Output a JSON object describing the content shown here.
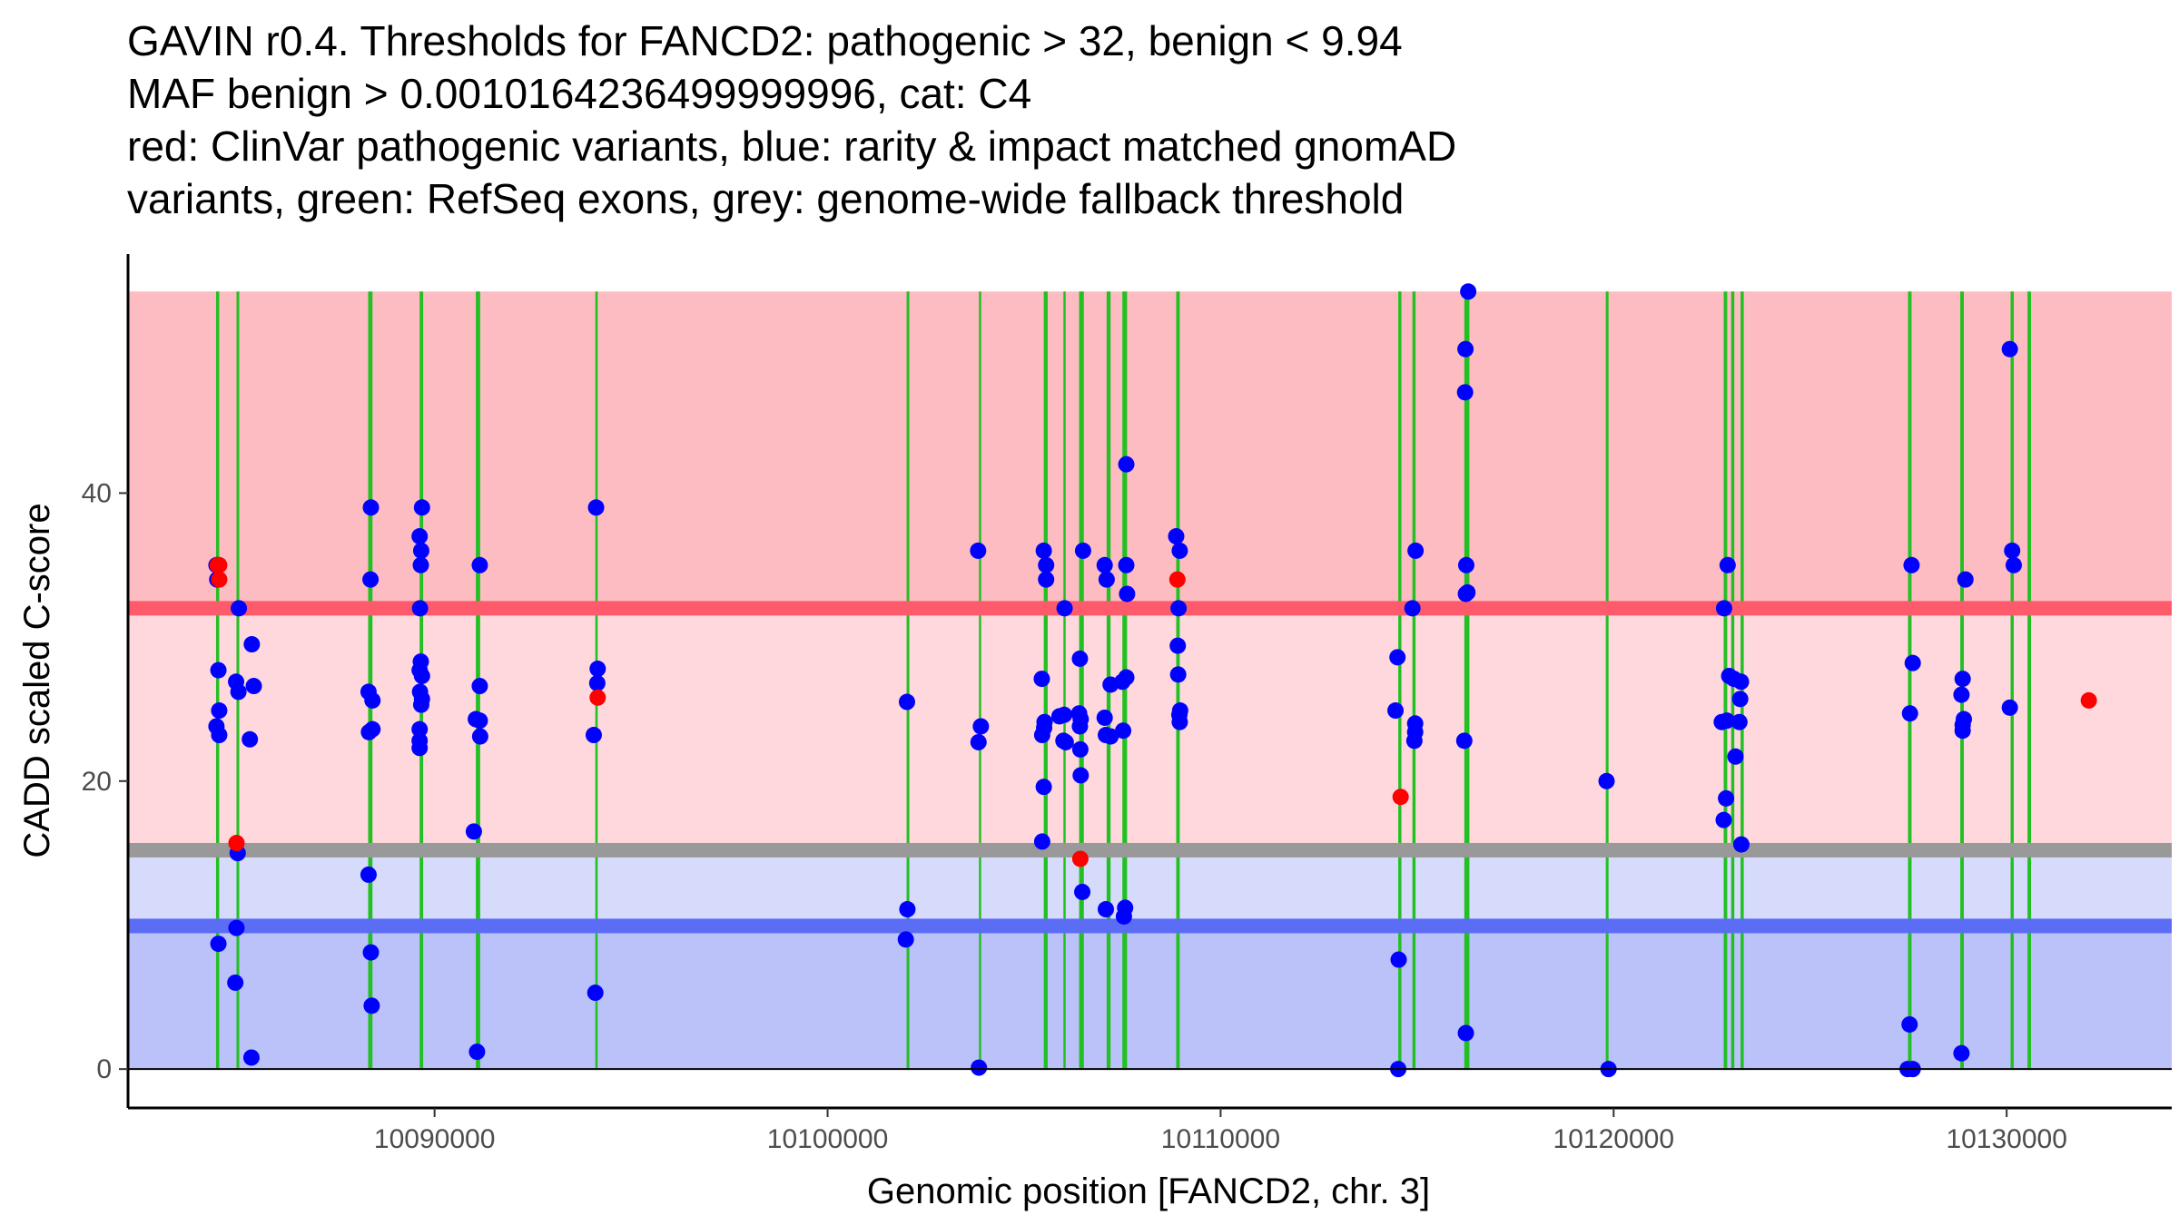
{
  "title_lines": [
    "GAVIN r0.4. Thresholds for FANCD2: pathogenic > 32, benign < 9.94",
    "MAF benign > 0.0010164236499999996, cat: C4",
    "red: ClinVar pathogenic variants, blue: rarity & impact matched gnomAD",
    "variants, green: RefSeq exons, grey: genome-wide fallback threshold"
  ],
  "chart_data": {
    "type": "scatter",
    "title": "GAVIN r0.4. Thresholds for FANCD2: pathogenic > 32, benign < 9.94 MAF benign > 0.0010164236499999996, cat: C4 red: ClinVar pathogenic variants, blue: rarity & impact matched gnomAD variants, green: RefSeq exons, grey: genome-wide fallback threshold",
    "xlabel": "Genomic position [FANCD2, chr. 3]",
    "ylabel": "CADD scaled C-score",
    "xlim": [
      10082200,
      10134200
    ],
    "ylim": [
      -2.7,
      56.6
    ],
    "x_ticks": [
      10090000,
      10100000,
      10110000,
      10120000,
      10130000
    ],
    "y_ticks": [
      0,
      20,
      40
    ],
    "x_tick_labels": [
      "10090000",
      "10100000",
      "10110000",
      "10120000",
      "10130000"
    ],
    "y_tick_labels": [
      "0",
      "20",
      "40"
    ],
    "colors": {
      "pathogenic_region": "#fdbcc2",
      "middle_pathogenic_region": "#fed8dd",
      "middle_benign_region": "#d6dbfc",
      "benign_region": "#bbc2fa",
      "pathogenic_threshold": "#fd5b6b",
      "benign_threshold": "#5b6cf5",
      "fallback_threshold": "#999999",
      "exon": "#22c022",
      "pathogenic_point": "#ff0000",
      "gnomad_point": "#0000ff"
    },
    "bands": [
      {
        "name": "pathogenic",
        "from": 32,
        "to": 54
      },
      {
        "name": "middle-high",
        "from": 15.2,
        "to": 32
      },
      {
        "name": "middle-low",
        "from": 9.94,
        "to": 15.2
      },
      {
        "name": "benign",
        "from": 0,
        "to": 9.94
      }
    ],
    "thresholds": {
      "pathogenic": 32,
      "benign": 9.94,
      "fallback": 15.2
    },
    "exons": [
      [
        10084440,
        10084520
      ],
      [
        10084960,
        10085030
      ],
      [
        10088310,
        10088420
      ],
      [
        10089620,
        10089710
      ],
      [
        10091050,
        10091160
      ],
      [
        10094090,
        10094150
      ],
      [
        10102010,
        10102080
      ],
      [
        10103850,
        10103880
      ],
      [
        10105500,
        10105600
      ],
      [
        10106000,
        10106030
      ],
      [
        10106400,
        10106520
      ],
      [
        10107100,
        10107200
      ],
      [
        10107500,
        10107620
      ],
      [
        10108870,
        10108960
      ],
      [
        10114520,
        10114600
      ],
      [
        10114880,
        10114960
      ],
      [
        10116200,
        10116330
      ],
      [
        10119800,
        10119870
      ],
      [
        10122800,
        10122890
      ],
      [
        10122990,
        10123070
      ],
      [
        10123230,
        10123310
      ],
      [
        10127490,
        10127580
      ],
      [
        10128820,
        10128910
      ],
      [
        10130100,
        10130180
      ],
      [
        10130530,
        10130620
      ]
    ],
    "series": [
      {
        "name": "ClinVar pathogenic variants",
        "color": "#ff0000",
        "points": [
          [
            10084480,
            35
          ],
          [
            10084520,
            34
          ],
          [
            10084520,
            35
          ],
          [
            10084960,
            15.7
          ],
          [
            10094150,
            25.8
          ],
          [
            10106430,
            14.6
          ],
          [
            10108900,
            34
          ],
          [
            10114580,
            18.9
          ],
          [
            10132090,
            25.6
          ]
        ]
      },
      {
        "name": "rarity & impact matched gnomAD variants",
        "color": "#0000ff",
        "points": [
          [
            10084450,
            35
          ],
          [
            10084470,
            34
          ],
          [
            10084500,
            27.7
          ],
          [
            10084520,
            24.9
          ],
          [
            10084450,
            23.8
          ],
          [
            10084520,
            23.2
          ],
          [
            10084500,
            8.7
          ],
          [
            10085020,
            32
          ],
          [
            10084950,
            26.9
          ],
          [
            10085010,
            26.2
          ],
          [
            10085350,
            29.5
          ],
          [
            10085400,
            26.6
          ],
          [
            10085300,
            22.9
          ],
          [
            10084990,
            15
          ],
          [
            10084960,
            9.8
          ],
          [
            10084930,
            6
          ],
          [
            10085340,
            0.8
          ],
          [
            10088380,
            39
          ],
          [
            10088370,
            34
          ],
          [
            10088320,
            26.2
          ],
          [
            10088420,
            25.6
          ],
          [
            10088330,
            23.4
          ],
          [
            10088420,
            23.6
          ],
          [
            10088320,
            13.5
          ],
          [
            10088380,
            8.1
          ],
          [
            10088400,
            4.4
          ],
          [
            10089620,
            37
          ],
          [
            10089680,
            39
          ],
          [
            10089660,
            36
          ],
          [
            10089650,
            35
          ],
          [
            10089630,
            32
          ],
          [
            10089650,
            28.3
          ],
          [
            10089620,
            27.7
          ],
          [
            10089680,
            27.3
          ],
          [
            10089630,
            26.2
          ],
          [
            10089680,
            25.7
          ],
          [
            10089620,
            23.6
          ],
          [
            10089620,
            22.8
          ],
          [
            10089620,
            22.3
          ],
          [
            10089660,
            25.3
          ],
          [
            10091150,
            35
          ],
          [
            10091050,
            24.3
          ],
          [
            10091150,
            24.2
          ],
          [
            10091150,
            26.6
          ],
          [
            10091160,
            23.1
          ],
          [
            10091000,
            16.5
          ],
          [
            10091080,
            1.2
          ],
          [
            10094110,
            39
          ],
          [
            10094150,
            27.8
          ],
          [
            10094140,
            26.8
          ],
          [
            10094050,
            23.2
          ],
          [
            10094090,
            5.3
          ],
          [
            10102020,
            25.5
          ],
          [
            10102030,
            11.1
          ],
          [
            10101990,
            9
          ],
          [
            10103830,
            36
          ],
          [
            10103900,
            23.8
          ],
          [
            10103840,
            22.7
          ],
          [
            10103850,
            0.1
          ],
          [
            10105500,
            36
          ],
          [
            10105560,
            35
          ],
          [
            10105560,
            34
          ],
          [
            10105450,
            27.1
          ],
          [
            10105460,
            23.2
          ],
          [
            10105520,
            24.1
          ],
          [
            10105510,
            23.7
          ],
          [
            10105500,
            19.6
          ],
          [
            10105460,
            15.8
          ],
          [
            10106030,
            32
          ],
          [
            10105900,
            24.5
          ],
          [
            10106020,
            24.6
          ],
          [
            10106000,
            22.8
          ],
          [
            10106060,
            22.7
          ],
          [
            10106400,
            24.7
          ],
          [
            10106440,
            24.3
          ],
          [
            10106420,
            23.8
          ],
          [
            10106430,
            22.2
          ],
          [
            10106440,
            20.4
          ],
          [
            10106500,
            36
          ],
          [
            10106420,
            28.5
          ],
          [
            10106480,
            12.3
          ],
          [
            10107050,
            35
          ],
          [
            10107100,
            34
          ],
          [
            10107200,
            26.7
          ],
          [
            10107050,
            24.4
          ],
          [
            10107080,
            23.2
          ],
          [
            10107200,
            23.1
          ],
          [
            10107080,
            11.1
          ],
          [
            10107600,
            35
          ],
          [
            10107620,
            33
          ],
          [
            10107600,
            42
          ],
          [
            10107500,
            26.9
          ],
          [
            10107600,
            27.2
          ],
          [
            10107520,
            23.5
          ],
          [
            10107570,
            11.2
          ],
          [
            10107540,
            10.6
          ],
          [
            10108870,
            37
          ],
          [
            10108960,
            36
          ],
          [
            10108930,
            32
          ],
          [
            10108910,
            29.4
          ],
          [
            10108920,
            27.4
          ],
          [
            10108970,
            24.9
          ],
          [
            10108950,
            24.6
          ],
          [
            10108960,
            24.1
          ],
          [
            10114500,
            28.6
          ],
          [
            10114450,
            24.9
          ],
          [
            10114530,
            7.6
          ],
          [
            10114520,
            0
          ],
          [
            10114960,
            36
          ],
          [
            10114880,
            32
          ],
          [
            10114950,
            24
          ],
          [
            10114950,
            23.4
          ],
          [
            10114930,
            22.8
          ],
          [
            10116300,
            54
          ],
          [
            10116230,
            50
          ],
          [
            10116220,
            47
          ],
          [
            10116250,
            35
          ],
          [
            10116280,
            33.1
          ],
          [
            10116240,
            33
          ],
          [
            10116200,
            22.8
          ],
          [
            10116240,
            2.5
          ],
          [
            10119820,
            20
          ],
          [
            10119870,
            0
          ],
          [
            10122900,
            35
          ],
          [
            10122810,
            32
          ],
          [
            10122940,
            27.3
          ],
          [
            10123060,
            27.1
          ],
          [
            10123240,
            26.9
          ],
          [
            10123220,
            25.7
          ],
          [
            10122750,
            24.1
          ],
          [
            10122880,
            24.2
          ],
          [
            10123200,
            24.1
          ],
          [
            10123100,
            21.7
          ],
          [
            10122860,
            18.8
          ],
          [
            10122800,
            17.3
          ],
          [
            10123250,
            15.6
          ],
          [
            10127580,
            35
          ],
          [
            10127610,
            28.2
          ],
          [
            10127540,
            24.7
          ],
          [
            10127530,
            3.1
          ],
          [
            10127480,
            0
          ],
          [
            10127610,
            0
          ],
          [
            10128950,
            34
          ],
          [
            10128880,
            27.1
          ],
          [
            10128850,
            26
          ],
          [
            10128910,
            24.3
          ],
          [
            10128880,
            23.9
          ],
          [
            10128880,
            23.5
          ],
          [
            10128850,
            1.1
          ],
          [
            10130080,
            50
          ],
          [
            10130140,
            36
          ],
          [
            10130180,
            35
          ],
          [
            10130080,
            25.1
          ]
        ]
      }
    ]
  }
}
